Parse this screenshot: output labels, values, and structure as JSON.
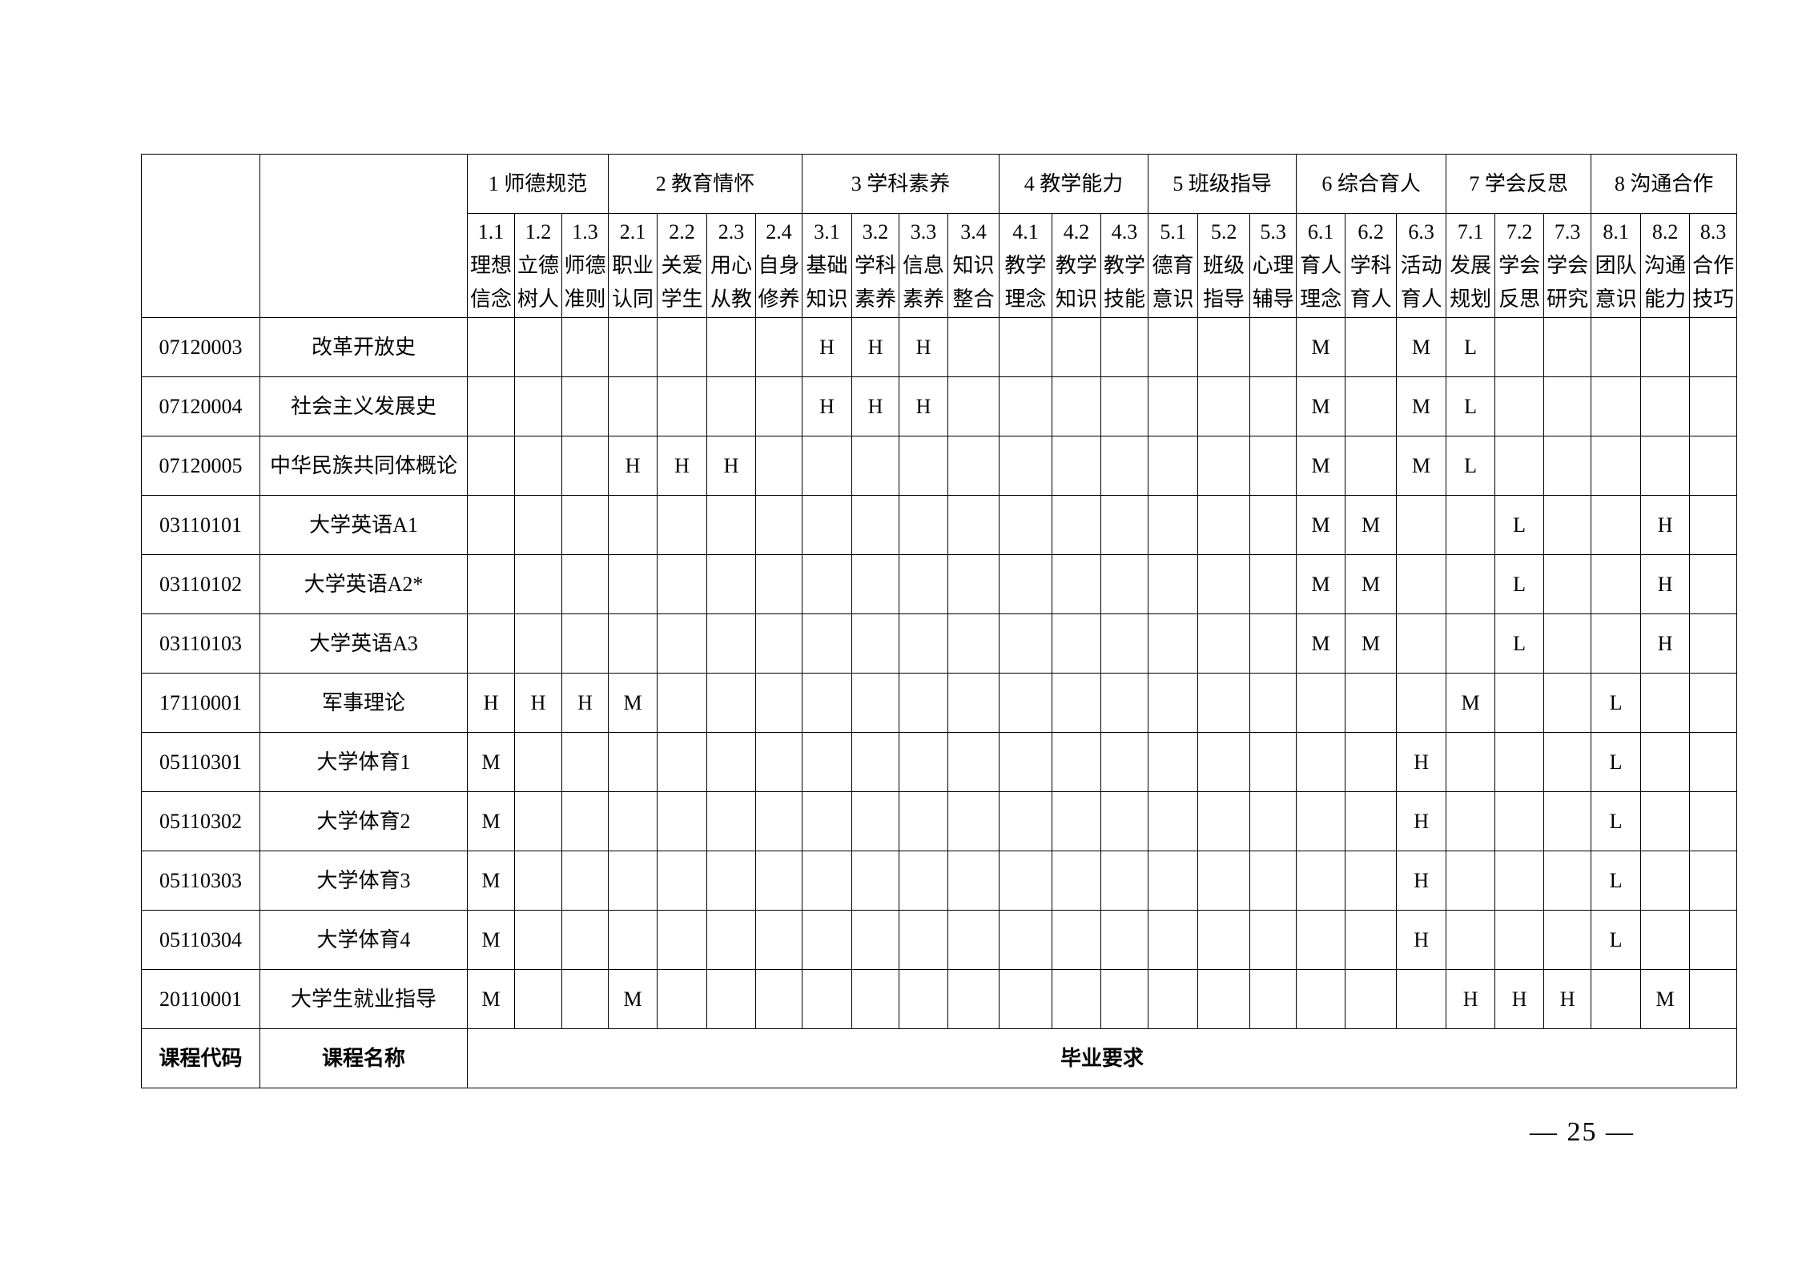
{
  "groups": [
    "1 师德规范",
    "2 教育情怀",
    "3 学科素养",
    "4 教学能力",
    "5 班级指导",
    "6 综合育人",
    "7 学会反思",
    "8 沟通合作"
  ],
  "group_spans": [
    3,
    4,
    4,
    3,
    3,
    3,
    3,
    3
  ],
  "subs": [
    {
      "num": "1.1",
      "l1": "理想",
      "l2": "信念"
    },
    {
      "num": "1.2",
      "l1": "立德",
      "l2": "树人"
    },
    {
      "num": "1.3",
      "l1": "师德",
      "l2": "准则"
    },
    {
      "num": "2.1",
      "l1": "职业",
      "l2": "认同"
    },
    {
      "num": "2.2",
      "l1": "关爱",
      "l2": "学生"
    },
    {
      "num": "2.3",
      "l1": "用心",
      "l2": "从教"
    },
    {
      "num": "2.4",
      "l1": "自身",
      "l2": "修养"
    },
    {
      "num": "3.1",
      "l1": "基础",
      "l2": "知识"
    },
    {
      "num": "3.2",
      "l1": "学科",
      "l2": "素养"
    },
    {
      "num": "3.3",
      "l1": "信息",
      "l2": "素养"
    },
    {
      "num": "3.4",
      "l1": "知识",
      "l2": "整合"
    },
    {
      "num": "4.1",
      "l1": "教学",
      "l2": "理念"
    },
    {
      "num": "4.2",
      "l1": "教学",
      "l2": "知识"
    },
    {
      "num": "4.3",
      "l1": "教学",
      "l2": "技能"
    },
    {
      "num": "5.1",
      "l1": "德育",
      "l2": "意识"
    },
    {
      "num": "5.2",
      "l1": "班级",
      "l2": "指导"
    },
    {
      "num": "5.3",
      "l1": "心理",
      "l2": "辅导"
    },
    {
      "num": "6.1",
      "l1": "育人",
      "l2": "理念"
    },
    {
      "num": "6.2",
      "l1": "学科",
      "l2": "育人"
    },
    {
      "num": "6.3",
      "l1": "活动",
      "l2": "育人"
    },
    {
      "num": "7.1",
      "l1": "发展",
      "l2": "规划"
    },
    {
      "num": "7.2",
      "l1": "学会",
      "l2": "反思"
    },
    {
      "num": "7.3",
      "l1": "学会",
      "l2": "研究"
    },
    {
      "num": "8.1",
      "l1": "团队",
      "l2": "意识"
    },
    {
      "num": "8.2",
      "l1": "沟通",
      "l2": "能力"
    },
    {
      "num": "8.3",
      "l1": "合作",
      "l2": "技巧"
    }
  ],
  "rows": [
    {
      "code": "07120003",
      "name": "改革开放史",
      "cells": [
        "",
        "",
        "",
        "",
        "",
        "",
        "",
        "H",
        "H",
        "H",
        "",
        "",
        "",
        "",
        "",
        "",
        "",
        "M",
        "",
        "M",
        "L",
        "",
        "",
        "",
        "",
        ""
      ]
    },
    {
      "code": "07120004",
      "name": "社会主义发展史",
      "cells": [
        "",
        "",
        "",
        "",
        "",
        "",
        "",
        "H",
        "H",
        "H",
        "",
        "",
        "",
        "",
        "",
        "",
        "",
        "M",
        "",
        "M",
        "L",
        "",
        "",
        "",
        "",
        ""
      ]
    },
    {
      "code": "07120005",
      "name": "中华民族共同体概论",
      "cells": [
        "",
        "",
        "",
        "H",
        "H",
        "H",
        "",
        "",
        "",
        "",
        "",
        "",
        "",
        "",
        "",
        "",
        "",
        "M",
        "",
        "M",
        "L",
        "",
        "",
        "",
        "",
        ""
      ]
    },
    {
      "code": "03110101",
      "name": "大学英语A1",
      "cells": [
        "",
        "",
        "",
        "",
        "",
        "",
        "",
        "",
        "",
        "",
        "",
        "",
        "",
        "",
        "",
        "",
        "",
        "M",
        "M",
        "",
        "",
        "L",
        "",
        "",
        "H",
        ""
      ]
    },
    {
      "code": "03110102",
      "name": "大学英语A2*",
      "cells": [
        "",
        "",
        "",
        "",
        "",
        "",
        "",
        "",
        "",
        "",
        "",
        "",
        "",
        "",
        "",
        "",
        "",
        "M",
        "M",
        "",
        "",
        "L",
        "",
        "",
        "H",
        ""
      ]
    },
    {
      "code": "03110103",
      "name": "大学英语A3",
      "cells": [
        "",
        "",
        "",
        "",
        "",
        "",
        "",
        "",
        "",
        "",
        "",
        "",
        "",
        "",
        "",
        "",
        "",
        "M",
        "M",
        "",
        "",
        "L",
        "",
        "",
        "H",
        ""
      ]
    },
    {
      "code": "17110001",
      "name": "军事理论",
      "cells": [
        "H",
        "H",
        "H",
        "M",
        "",
        "",
        "",
        "",
        "",
        "",
        "",
        "",
        "",
        "",
        "",
        "",
        "",
        "",
        "",
        "",
        "M",
        "",
        "",
        "L",
        "",
        ""
      ]
    },
    {
      "code": "05110301",
      "name": "大学体育1",
      "cells": [
        "M",
        "",
        "",
        "",
        "",
        "",
        "",
        "",
        "",
        "",
        "",
        "",
        "",
        "",
        "",
        "",
        "",
        "",
        "",
        "H",
        "",
        "",
        "",
        "L",
        "",
        ""
      ]
    },
    {
      "code": "05110302",
      "name": "大学体育2",
      "cells": [
        "M",
        "",
        "",
        "",
        "",
        "",
        "",
        "",
        "",
        "",
        "",
        "",
        "",
        "",
        "",
        "",
        "",
        "",
        "",
        "H",
        "",
        "",
        "",
        "L",
        "",
        ""
      ]
    },
    {
      "code": "05110303",
      "name": "大学体育3",
      "cells": [
        "M",
        "",
        "",
        "",
        "",
        "",
        "",
        "",
        "",
        "",
        "",
        "",
        "",
        "",
        "",
        "",
        "",
        "",
        "",
        "H",
        "",
        "",
        "",
        "L",
        "",
        ""
      ]
    },
    {
      "code": "05110304",
      "name": "大学体育4",
      "cells": [
        "M",
        "",
        "",
        "",
        "",
        "",
        "",
        "",
        "",
        "",
        "",
        "",
        "",
        "",
        "",
        "",
        "",
        "",
        "",
        "H",
        "",
        "",
        "",
        "L",
        "",
        ""
      ]
    },
    {
      "code": "20110001",
      "name": "大学生就业指导",
      "cells": [
        "M",
        "",
        "",
        "M",
        "",
        "",
        "",
        "",
        "",
        "",
        "",
        "",
        "",
        "",
        "",
        "",
        "",
        "",
        "",
        "",
        "H",
        "H",
        "H",
        "",
        "M",
        ""
      ]
    }
  ],
  "footer": {
    "code_label": "课程代码",
    "name_label": "课程名称",
    "req_label": "毕业要求"
  },
  "page_number": "— 25 —"
}
